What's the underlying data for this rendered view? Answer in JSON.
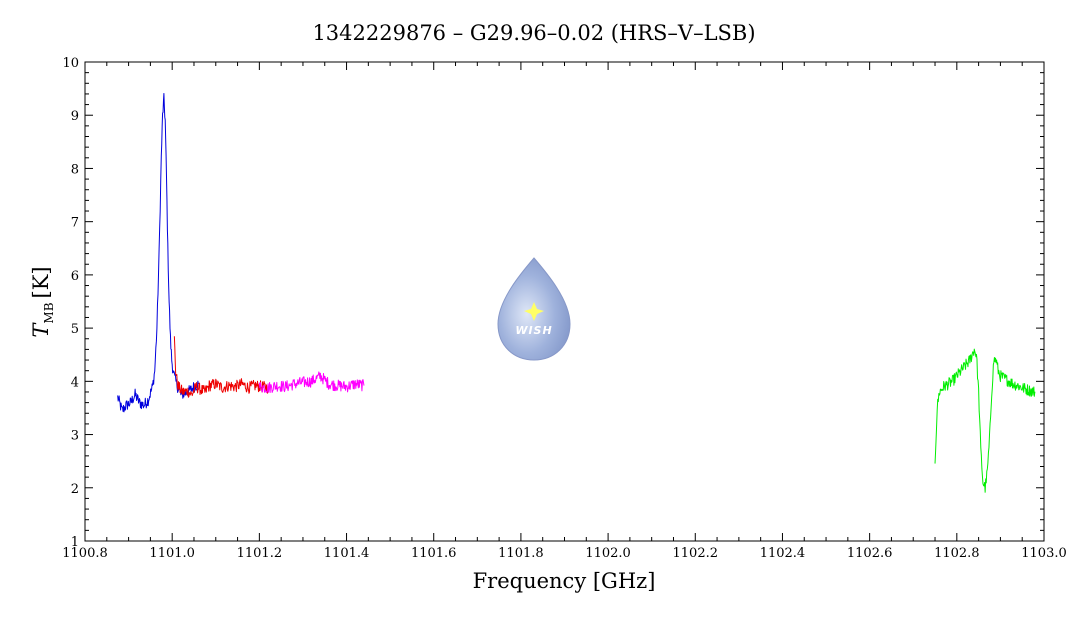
{
  "chart_data": {
    "type": "line",
    "title": "1342229876 – G29.96–0.02 (HRS–V–LSB)",
    "xlabel": "Frequency [GHz]",
    "ylabel_main": "T",
    "ylabel_sub": "MB",
    "ylabel_unit": "[K]",
    "xlim": [
      1100.8,
      1103.0
    ],
    "ylim": [
      1,
      10
    ],
    "xticks": [
      "1100.8",
      "1101.0",
      "1101.2",
      "1101.4",
      "1101.6",
      "1101.8",
      "1102.0",
      "1102.2",
      "1102.4",
      "1102.6",
      "1102.8",
      "1103.0"
    ],
    "yticks": [
      "1",
      "2",
      "3",
      "4",
      "5",
      "6",
      "7",
      "8",
      "9",
      "10"
    ],
    "grid": false,
    "series": [
      {
        "color": "#0000dd",
        "x": [
          1100.875,
          1100.885,
          1100.895,
          1100.905,
          1100.915,
          1100.925,
          1100.935,
          1100.945,
          1100.955,
          1100.96,
          1100.965,
          1100.97,
          1100.975,
          1100.978,
          1100.981,
          1100.984,
          1100.987,
          1100.99,
          1100.993,
          1100.996,
          1100.999,
          1101.002,
          1101.006,
          1101.01,
          1101.015,
          1101.02,
          1101.03,
          1101.04,
          1101.05,
          1101.06
        ],
        "y": [
          3.7,
          3.45,
          3.55,
          3.6,
          3.75,
          3.6,
          3.55,
          3.65,
          3.9,
          4.2,
          5.0,
          6.4,
          8.2,
          9.0,
          9.3,
          8.9,
          7.8,
          6.5,
          5.5,
          4.8,
          4.4,
          4.2,
          4.05,
          3.95,
          3.85,
          3.75,
          3.78,
          3.82,
          3.9,
          3.95
        ]
      },
      {
        "color": "#ee0000",
        "x": [
          1101.005,
          1101.008,
          1101.012,
          1101.018,
          1101.025,
          1101.035,
          1101.045,
          1101.055,
          1101.065,
          1101.075,
          1101.085,
          1101.1,
          1101.115,
          1101.13,
          1101.145,
          1101.16,
          1101.175,
          1101.19,
          1101.205,
          1101.22
        ],
        "y": [
          4.8,
          4.2,
          3.95,
          3.85,
          3.8,
          3.82,
          3.75,
          3.9,
          3.85,
          3.8,
          3.92,
          3.95,
          3.88,
          3.92,
          3.9,
          3.95,
          3.88,
          3.92,
          3.9,
          3.88
        ]
      },
      {
        "color": "#ff00ff",
        "x": [
          1101.2,
          1101.22,
          1101.24,
          1101.26,
          1101.28,
          1101.3,
          1101.32,
          1101.34,
          1101.36,
          1101.38,
          1101.4,
          1101.42,
          1101.44
        ],
        "y": [
          3.9,
          3.88,
          3.92,
          3.9,
          3.95,
          3.98,
          4.0,
          4.1,
          3.95,
          3.92,
          3.9,
          3.95,
          3.92
        ]
      },
      {
        "color": "#00ee00",
        "x": [
          1102.75,
          1102.755,
          1102.76,
          1102.77,
          1102.78,
          1102.79,
          1102.8,
          1102.81,
          1102.82,
          1102.83,
          1102.84,
          1102.845,
          1102.85,
          1102.855,
          1102.86,
          1102.865,
          1102.87,
          1102.875,
          1102.88,
          1102.885,
          1102.89,
          1102.895,
          1102.9,
          1102.91,
          1102.92,
          1102.93,
          1102.94,
          1102.95,
          1102.96,
          1102.97,
          1102.98
        ],
        "y": [
          2.5,
          3.5,
          3.8,
          3.9,
          3.95,
          4.0,
          4.1,
          4.2,
          4.3,
          4.4,
          4.6,
          4.5,
          3.8,
          2.7,
          2.1,
          2.0,
          2.3,
          2.9,
          3.8,
          4.4,
          4.4,
          4.2,
          4.1,
          4.05,
          4.0,
          3.95,
          3.92,
          3.88,
          3.85,
          3.82,
          3.8
        ]
      }
    ]
  },
  "logo": {
    "text": "WISH"
  }
}
